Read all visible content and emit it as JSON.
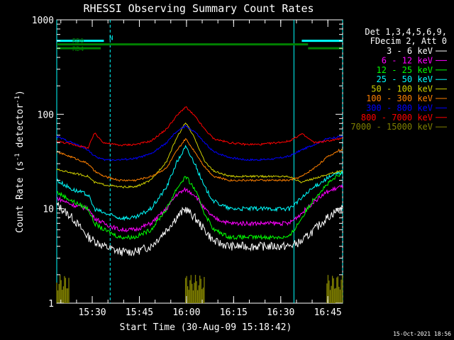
{
  "chart_data": {
    "type": "line",
    "title": "RHESSI Observing Summary Count Rates",
    "xlabel": "Start Time (30-Aug-09 15:18:42)",
    "ylabel": "Count Rate (s⁻¹ detector⁻¹)",
    "ylabel_parts": [
      "Count Rate (s",
      "-1",
      " detector",
      "-1",
      ")"
    ],
    "xlim_minutes": [
      0,
      45
    ],
    "ylim": [
      1,
      1000
    ],
    "yscale": "log",
    "x_ticks": [
      {
        "label": "15:30",
        "min": 11.3
      },
      {
        "label": "15:45",
        "min": 26.3
      },
      {
        "label": "16:00",
        "min": 41.3
      },
      {
        "label": "16:15",
        "min": 56.3
      },
      {
        "label": "16:30",
        "min": 71.3
      },
      {
        "label": "16:45",
        "min": 86.3
      }
    ],
    "y_ticks": [
      {
        "label": "1",
        "value": 1
      },
      {
        "label": "10",
        "value": 10
      },
      {
        "label": "100",
        "value": 100
      },
      {
        "label": "1000",
        "value": 1000
      }
    ],
    "x_range_minutes": [
      0,
      91
    ],
    "legend_header": [
      "Det 1,3,4,5,6,9,",
      "FDecim 2, Att 0"
    ],
    "series": [
      {
        "name": "3 - 6 keV",
        "color": "#ffffff",
        "x": [
          0,
          5,
          10,
          15,
          20,
          25,
          30,
          35,
          38,
          41,
          44,
          47,
          50,
          55,
          60,
          65,
          70,
          74,
          78,
          82,
          86,
          90
        ],
        "y": [
          11,
          8,
          5,
          4,
          3.5,
          3.5,
          4,
          6,
          8,
          10,
          8,
          6,
          4.5,
          4,
          4,
          4,
          4,
          4,
          4.5,
          6,
          8,
          10
        ]
      },
      {
        "name": "6 - 12 keV",
        "color": "#ff00ff",
        "x": [
          0,
          5,
          10,
          12,
          15,
          20,
          25,
          30,
          35,
          38,
          41,
          44,
          47,
          50,
          55,
          60,
          65,
          70,
          74,
          78,
          82,
          86,
          90
        ],
        "y": [
          13,
          11,
          10,
          8,
          7,
          6,
          6,
          7,
          10,
          14,
          16,
          14,
          10,
          8,
          7,
          7,
          7,
          7,
          7,
          9,
          12,
          15,
          17
        ]
      },
      {
        "name": "12 - 25 keV",
        "color": "#00ff00",
        "x": [
          0,
          5,
          10,
          12,
          15,
          20,
          25,
          30,
          35,
          38,
          41,
          44,
          47,
          50,
          55,
          60,
          65,
          70,
          74,
          78,
          82,
          86,
          90
        ],
        "y": [
          15,
          12,
          10,
          7,
          6,
          5,
          5,
          6,
          10,
          16,
          22,
          16,
          9,
          6,
          5,
          5,
          5,
          5,
          5,
          8,
          13,
          18,
          23
        ]
      },
      {
        "name": "25 - 50 keV",
        "color": "#00ffff",
        "x": [
          0,
          5,
          10,
          12,
          15,
          20,
          25,
          30,
          35,
          38,
          41,
          44,
          47,
          50,
          55,
          60,
          65,
          70,
          74,
          78,
          82,
          86,
          90
        ],
        "y": [
          20,
          16,
          14,
          10,
          9,
          8,
          8,
          10,
          17,
          30,
          45,
          30,
          17,
          12,
          10,
          10,
          10,
          10,
          10,
          13,
          17,
          21,
          24
        ]
      },
      {
        "name": "50 - 100 keV",
        "color": "#d0d000",
        "x": [
          0,
          5,
          10,
          12,
          15,
          20,
          25,
          30,
          35,
          38,
          41,
          44,
          47,
          50,
          55,
          60,
          65,
          70,
          74,
          78,
          82,
          86,
          90
        ],
        "y": [
          26,
          24,
          22,
          19,
          18,
          17,
          17,
          20,
          32,
          55,
          82,
          55,
          32,
          25,
          22,
          22,
          22,
          22,
          22,
          19,
          21,
          23,
          25
        ]
      },
      {
        "name": "100 - 300 keV",
        "color": "#ff8000",
        "x": [
          0,
          5,
          10,
          12,
          15,
          20,
          25,
          30,
          35,
          38,
          41,
          44,
          47,
          50,
          55,
          60,
          65,
          70,
          74,
          78,
          82,
          86,
          90
        ],
        "y": [
          40,
          35,
          30,
          25,
          22,
          20,
          20,
          22,
          27,
          40,
          55,
          40,
          28,
          22,
          20,
          20,
          20,
          20,
          20,
          22,
          27,
          35,
          42
        ]
      },
      {
        "name": "300 - 800 keV",
        "color": "#0000ff",
        "x": [
          0,
          5,
          10,
          12,
          15,
          20,
          25,
          30,
          35,
          38,
          41,
          44,
          47,
          50,
          55,
          60,
          65,
          70,
          74,
          78,
          82,
          86,
          90
        ],
        "y": [
          58,
          50,
          42,
          36,
          33,
          33,
          34,
          38,
          50,
          65,
          75,
          65,
          50,
          40,
          35,
          33,
          33,
          34,
          36,
          42,
          48,
          55,
          58
        ]
      },
      {
        "name": "800 - 7000 keV",
        "color": "#ff0000",
        "x": [
          0,
          5,
          10,
          12,
          15,
          20,
          25,
          30,
          35,
          38,
          41,
          44,
          47,
          50,
          55,
          60,
          65,
          70,
          74,
          78,
          82,
          86,
          90
        ],
        "y": [
          52,
          48,
          44,
          63,
          50,
          47,
          48,
          52,
          70,
          95,
          120,
          95,
          70,
          55,
          50,
          48,
          48,
          50,
          52,
          62,
          50,
          52,
          55
        ]
      },
      {
        "name": "7000 - 15000 keV",
        "color": "#808000",
        "x": [],
        "y": []
      }
    ],
    "bursts_7000": [
      [
        0,
        4
      ],
      [
        41,
        47
      ],
      [
        86,
        91
      ]
    ],
    "saa_lines_min": [
      0,
      17,
      75.5,
      91
    ],
    "annotations": [
      {
        "label": "N",
        "color": "#00ffff",
        "x_start": 0,
        "x_end": 15,
        "y_value": 600
      },
      {
        "label": "N",
        "color": "#00ffff",
        "x_start": 78,
        "x_end": 91,
        "y_value": 600
      },
      {
        "label": "RD0",
        "color": "#008000",
        "x_start": 0,
        "x_end": 80,
        "y_value": 550
      },
      {
        "label": "RD4",
        "color": "#008000",
        "x_start": 0,
        "x_end": 14,
        "y_value": 500
      },
      {
        "label": "RD4",
        "color": "#008000",
        "x_start": 80,
        "x_end": 91,
        "y_value": 500
      }
    ],
    "grid": false,
    "legend_position": "right"
  },
  "footer_timestamp": "15-Oct-2021 18:56"
}
